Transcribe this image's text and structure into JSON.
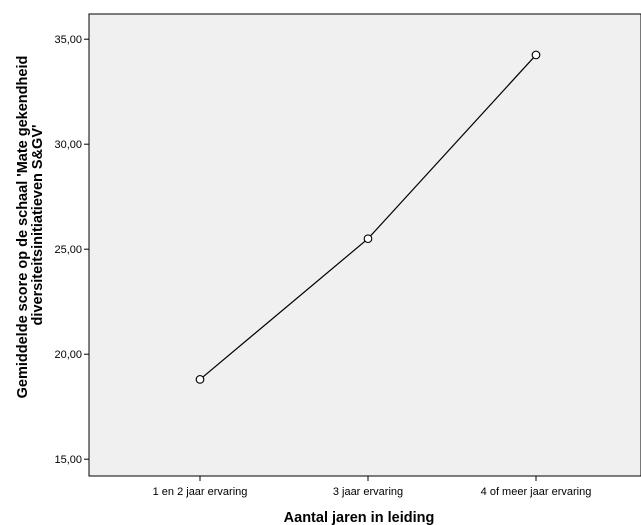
{
  "chart_data": {
    "type": "line",
    "title": "",
    "categories": [
      "1 en 2 jaar ervaring",
      "3 jaar ervaring",
      "4 of meer jaar ervaring"
    ],
    "series": [
      {
        "values": [
          18.8,
          25.5,
          34.25
        ]
      }
    ],
    "xlabel": "Aantal jaren in leiding",
    "ylabel_lines": [
      "Gemiddelde score op de schaal 'Mate gekendheid",
      "diversiteitsinitiatieven S&GV'"
    ],
    "ylim": [
      14.2,
      36.2
    ],
    "yticks": [
      "15,00",
      "20,00",
      "25,00",
      "30,00",
      "35,00"
    ],
    "ytick_values": [
      15,
      20,
      25,
      30,
      35
    ],
    "grid": false,
    "legend": "none",
    "marker": "open-circle",
    "colors": {
      "plot_background": "#f0f0f0",
      "line": "#000000",
      "marker_fill": "#ffffff"
    }
  }
}
